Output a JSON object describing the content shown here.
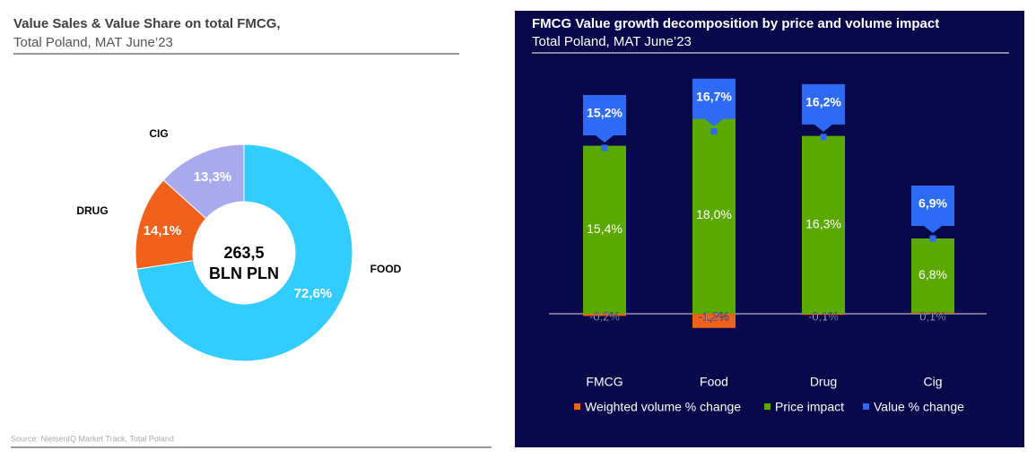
{
  "chart_data": [
    {
      "type": "donut",
      "title": "Value Sales & Value Share on total FMCG,",
      "subtitle": "Total Poland, MAT June’23",
      "categories": [
        "FOOD",
        "DRUG",
        "CIG"
      ],
      "values": [
        72.6,
        14.1,
        13.3
      ],
      "value_labels": [
        "72,6%",
        "14,1%",
        "13,3%"
      ],
      "colors": [
        "#33ccff",
        "#f0621c",
        "#a9a9ee"
      ],
      "center_label": [
        "263,5",
        "BLN PLN"
      ],
      "source": "Source: NielsenIQ Market Track, Total Poland"
    },
    {
      "type": "bar",
      "title": "FMCG Value growth decomposition by price and volume impact",
      "subtitle": "Total Poland, MAT June’23",
      "categories": [
        "FMCG",
        "Food",
        "Drug",
        "Cig"
      ],
      "ylim": [
        -3,
        21
      ],
      "series": [
        {
          "name": "Weighted volume % change",
          "color": "#f0621c",
          "values": [
            -0.2,
            -1.3,
            -0.1,
            0.1
          ],
          "value_labels": [
            "-0,2%",
            "-1,3%",
            "-0,1%",
            "0,1%"
          ]
        },
        {
          "name": "Price impact",
          "color": "#5aa800",
          "values": [
            15.4,
            18.0,
            16.3,
            6.8
          ],
          "value_labels": [
            "15,4%",
            "18,0%",
            "16,3%",
            "6,8%"
          ]
        },
        {
          "name": "Value % change",
          "color": "#2f6af5",
          "values": [
            15.2,
            16.7,
            16.2,
            6.9
          ],
          "value_labels": [
            "15,2%",
            "16,7%",
            "16,2%",
            "6,9%"
          ]
        }
      ]
    }
  ]
}
